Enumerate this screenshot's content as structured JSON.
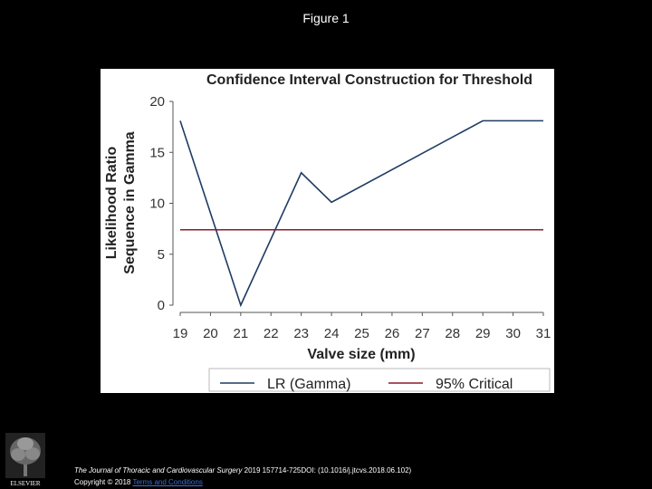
{
  "slide": {
    "title": "Figure 1"
  },
  "citation": {
    "journal": "The Journal of Thoracic and Cardiovascular Surgery",
    "details": " 2019 157714-725DOI: (10.1016/j.jtcvs.2018.06.102)"
  },
  "copyright": {
    "text": "Copyright © 2018 ",
    "link": "Terms and Conditions"
  },
  "logo": {
    "icon": "elsevier-tree-logo",
    "wordmark": "ELSEVIER"
  },
  "colors": {
    "background": "#000000",
    "lr_series": "#1f3c64",
    "critical_series": "#8b1a2b"
  },
  "chart_data": {
    "type": "line",
    "title": "Confidence Interval Construction for Threshold",
    "xlabel": "Valve size (mm)",
    "ylabel_line1": "Likelihood Ratio",
    "ylabel_line2": "Sequence in Gamma",
    "x_ticks": [
      19,
      20,
      21,
      22,
      23,
      24,
      25,
      26,
      27,
      28,
      29,
      30,
      31
    ],
    "y_ticks": [
      0,
      5,
      10,
      15,
      20
    ],
    "xlim": [
      19,
      31
    ],
    "ylim": [
      0,
      20
    ],
    "grid": false,
    "legend_position": "bottom",
    "series": [
      {
        "name": "LR (Gamma)",
        "color": "#1f3c64",
        "x": [
          19,
          21,
          23,
          24,
          29,
          31
        ],
        "y": [
          18.1,
          0,
          13,
          10.1,
          18.1,
          18.1
        ]
      },
      {
        "name": "95% Critical",
        "color": "#8b1a2b",
        "x": [
          19,
          31
        ],
        "y": [
          7.4,
          7.4
        ]
      }
    ]
  }
}
